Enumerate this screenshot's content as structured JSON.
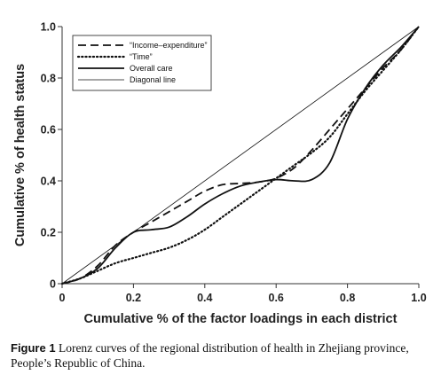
{
  "chart_data": {
    "type": "line",
    "xlabel": "Cumulative % of the factor loadings in each district",
    "ylabel": "Cumulative % of health status",
    "xlim": [
      0,
      1
    ],
    "ylim": [
      0,
      1
    ],
    "x_ticks": [
      "0",
      "0.2",
      "0.4",
      "0.6",
      "0.8",
      "1.0"
    ],
    "y_ticks": [
      "0",
      "0.2",
      "0.4",
      "0.6",
      "0.8",
      "1.0"
    ],
    "grid": false,
    "legend_position": "top-left",
    "series": [
      {
        "name": "“Income–expenditure”",
        "style": "dashed",
        "color": "#111111",
        "points": [
          [
            0,
            0
          ],
          [
            0.05,
            0.02
          ],
          [
            0.1,
            0.07
          ],
          [
            0.15,
            0.15
          ],
          [
            0.2,
            0.2
          ],
          [
            0.25,
            0.24
          ],
          [
            0.3,
            0.28
          ],
          [
            0.35,
            0.32
          ],
          [
            0.4,
            0.36
          ],
          [
            0.45,
            0.385
          ],
          [
            0.5,
            0.39
          ],
          [
            0.55,
            0.395
          ],
          [
            0.6,
            0.41
          ],
          [
            0.65,
            0.45
          ],
          [
            0.7,
            0.52
          ],
          [
            0.75,
            0.6
          ],
          [
            0.8,
            0.68
          ],
          [
            0.85,
            0.76
          ],
          [
            0.9,
            0.84
          ],
          [
            0.95,
            0.91
          ],
          [
            1,
            1
          ]
        ]
      },
      {
        "name": "“Time”",
        "style": "dotted",
        "color": "#111111",
        "points": [
          [
            0,
            0
          ],
          [
            0.05,
            0.02
          ],
          [
            0.1,
            0.05
          ],
          [
            0.15,
            0.08
          ],
          [
            0.2,
            0.1
          ],
          [
            0.25,
            0.12
          ],
          [
            0.3,
            0.14
          ],
          [
            0.35,
            0.17
          ],
          [
            0.4,
            0.21
          ],
          [
            0.45,
            0.26
          ],
          [
            0.5,
            0.31
          ],
          [
            0.55,
            0.36
          ],
          [
            0.6,
            0.41
          ],
          [
            0.65,
            0.46
          ],
          [
            0.7,
            0.51
          ],
          [
            0.75,
            0.57
          ],
          [
            0.8,
            0.66
          ],
          [
            0.85,
            0.75
          ],
          [
            0.9,
            0.83
          ],
          [
            0.95,
            0.91
          ],
          [
            1,
            1
          ]
        ]
      },
      {
        "name": "Overall care",
        "style": "solid",
        "color": "#111111",
        "points": [
          [
            0,
            0
          ],
          [
            0.05,
            0.02
          ],
          [
            0.1,
            0.06
          ],
          [
            0.15,
            0.14
          ],
          [
            0.2,
            0.2
          ],
          [
            0.25,
            0.21
          ],
          [
            0.3,
            0.22
          ],
          [
            0.35,
            0.26
          ],
          [
            0.4,
            0.31
          ],
          [
            0.45,
            0.35
          ],
          [
            0.5,
            0.38
          ],
          [
            0.55,
            0.395
          ],
          [
            0.6,
            0.405
          ],
          [
            0.65,
            0.4
          ],
          [
            0.7,
            0.405
          ],
          [
            0.75,
            0.47
          ],
          [
            0.8,
            0.64
          ],
          [
            0.85,
            0.76
          ],
          [
            0.9,
            0.85
          ],
          [
            0.95,
            0.92
          ],
          [
            1,
            1
          ]
        ]
      },
      {
        "name": "Diagonal line",
        "style": "thin",
        "color": "#111111",
        "points": [
          [
            0,
            0
          ],
          [
            1,
            1
          ]
        ]
      }
    ]
  },
  "caption": {
    "label": "Figure 1",
    "text": "Lorenz curves of the regional distribution of health in Zhejiang province, People’s Republic of China."
  }
}
